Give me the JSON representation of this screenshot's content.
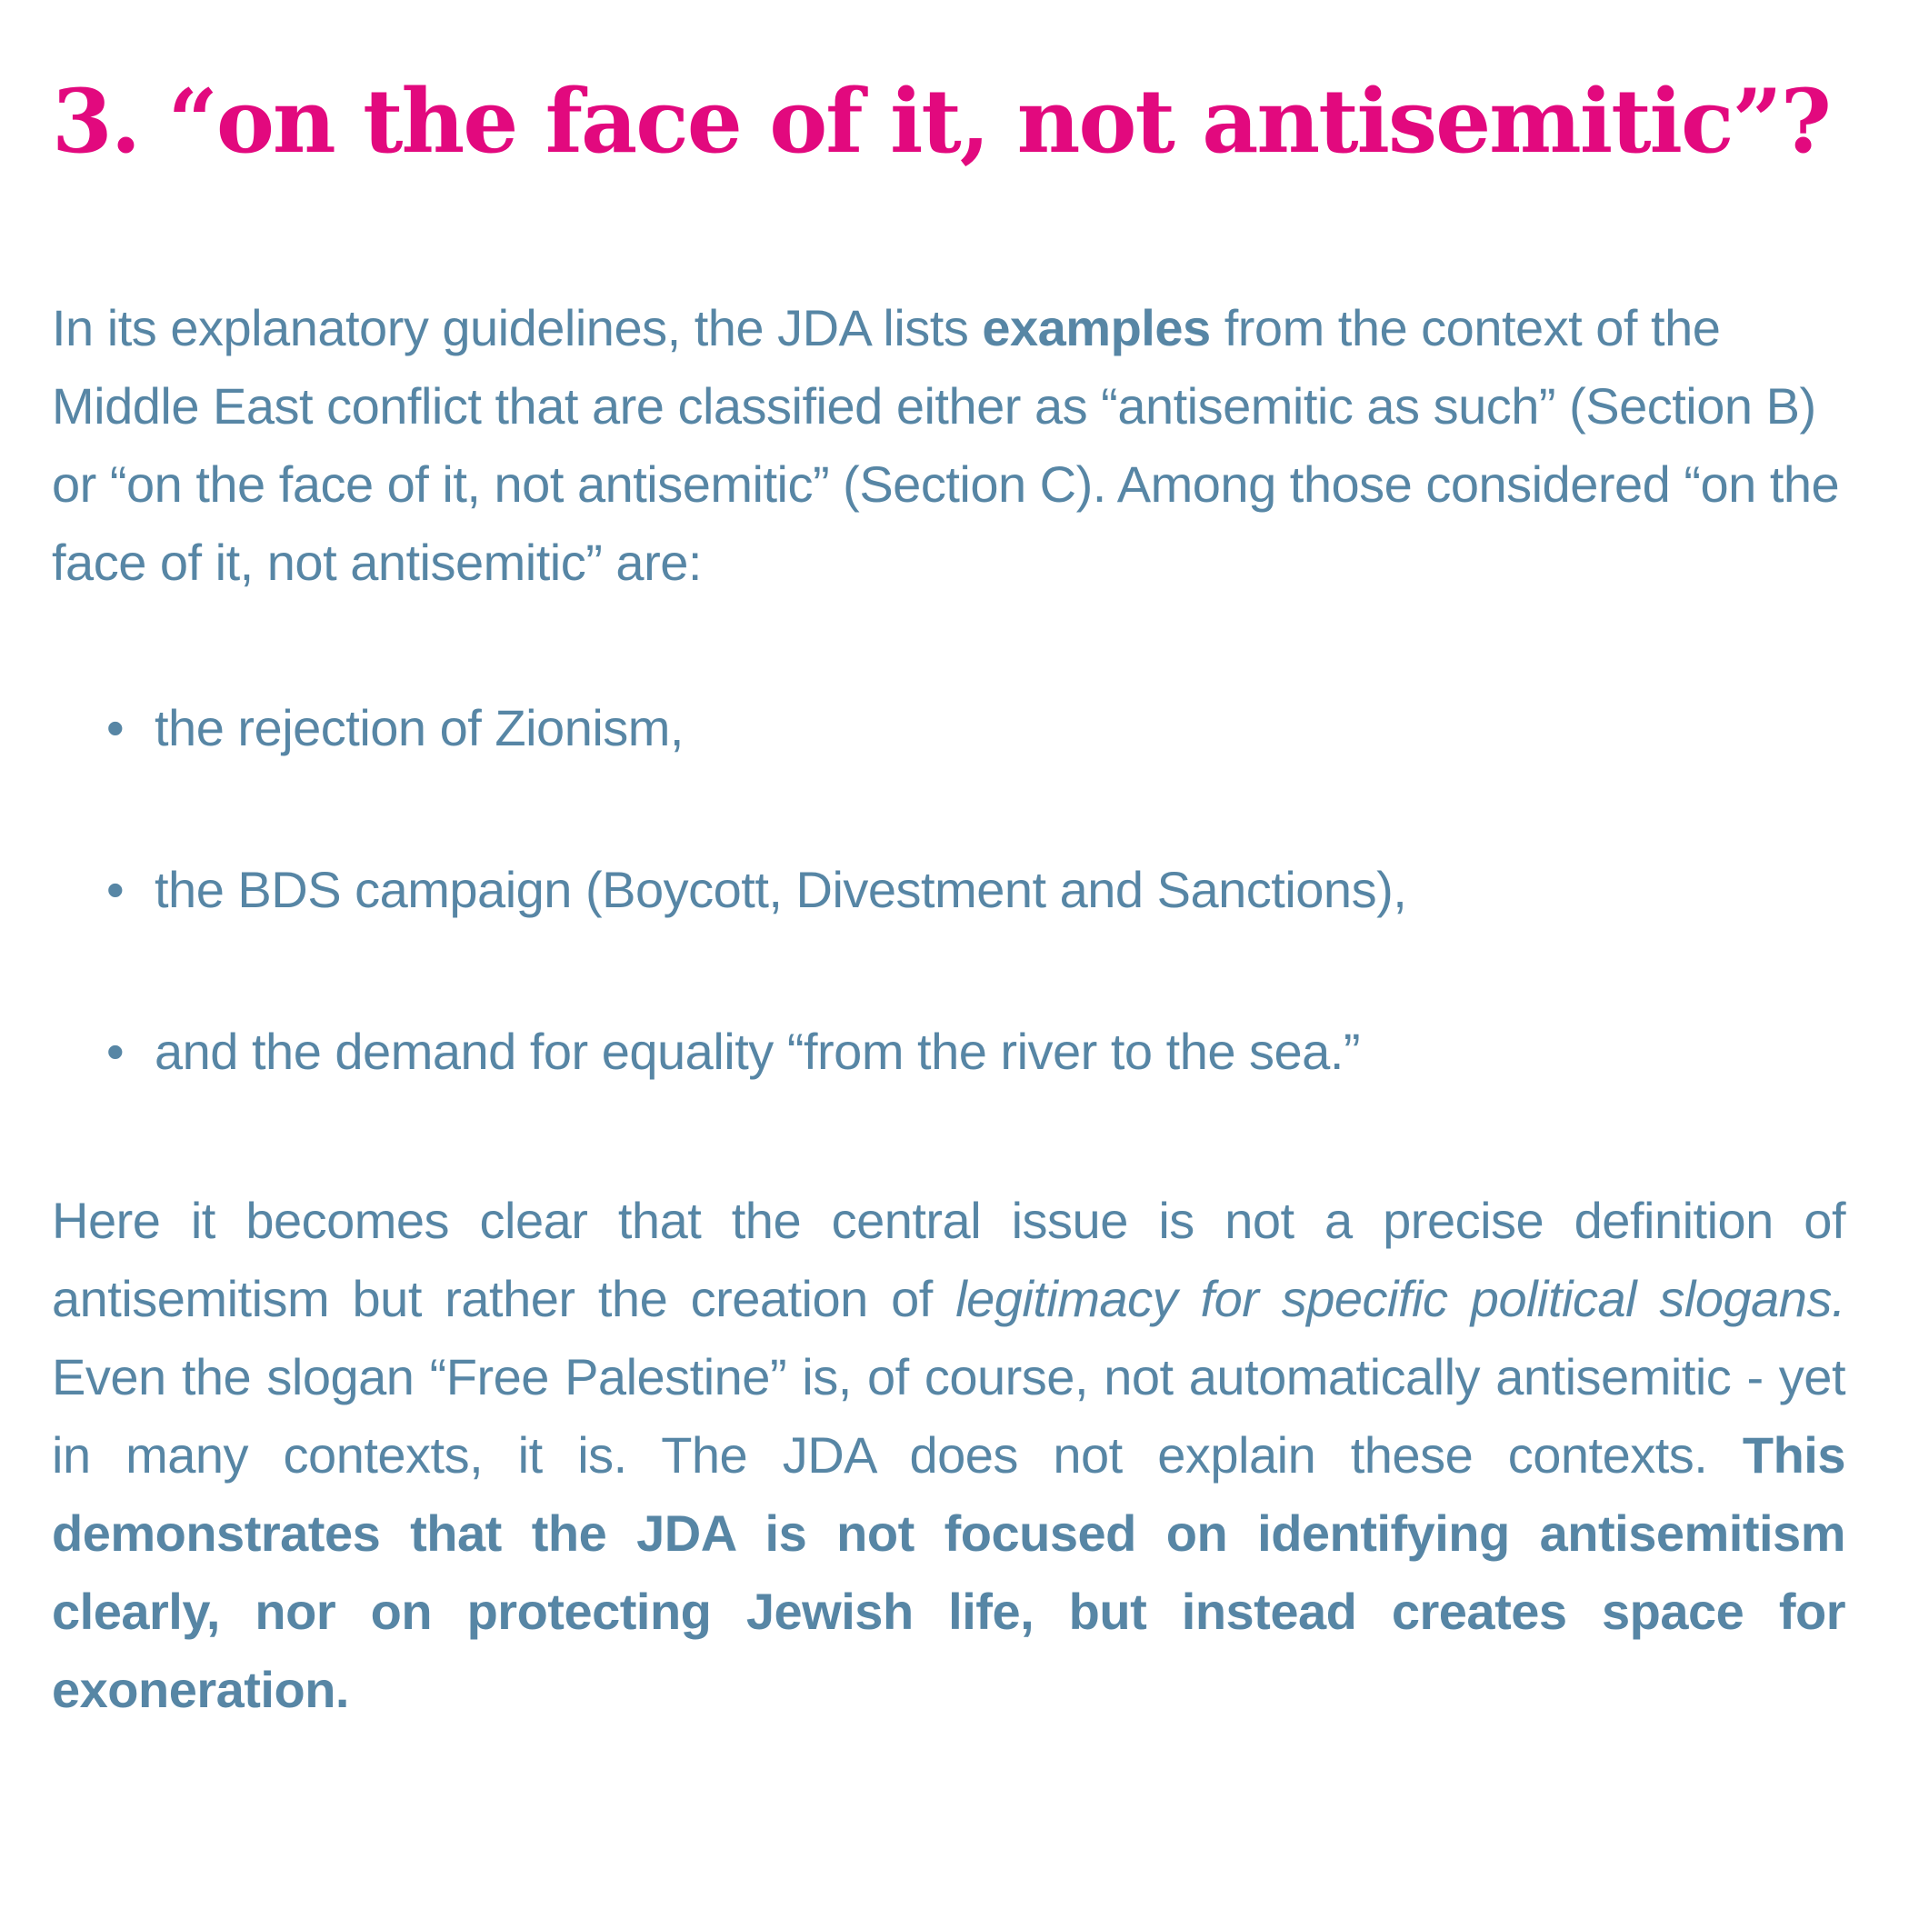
{
  "page": {
    "background_color": "#ffffff",
    "accent_pink": "#e2097e",
    "text_blue": "#5786a5"
  },
  "heading": {
    "text": "3. “on the face of it, not antisemitic”?"
  },
  "intro_paragraph": {
    "segments": [
      {
        "text": "In its explanatory guidelines, the JDA lists "
      },
      {
        "text": "examples",
        "bold": true
      },
      {
        "text": " from the context of the Middle East conflict that are classified either as “antisemitic as such” (Section B) or “on the face of it, not antisemitic” (Section C). Among those considered “on the face of it, not antisemitic” are:"
      }
    ]
  },
  "bullet_list": {
    "bullet_glyph": "•",
    "items": [
      "the rejection of Zionism,",
      "the BDS campaign (Boycott, Divestment and Sanctions),",
      "and the demand for equality “from the river to the sea.”"
    ]
  },
  "closing_paragraph": {
    "segments": [
      {
        "text": "Here it becomes clear that the central issue is not a precise definition of antisemitism but rather the creation of "
      },
      {
        "text": "legitimacy for specific political slogans.",
        "italic": true
      },
      {
        "text": " Even the slogan “Free Palestine” is, of course, not automatically antisemitic - yet in many contexts, it is. The JDA does not explain these contexts. "
      },
      {
        "text": "This demonstrates that the JDA is not focused on identifying antisemitism clearly, nor on protecting Jewish life, but instead creates space for exoneration.",
        "bold": true
      }
    ]
  }
}
